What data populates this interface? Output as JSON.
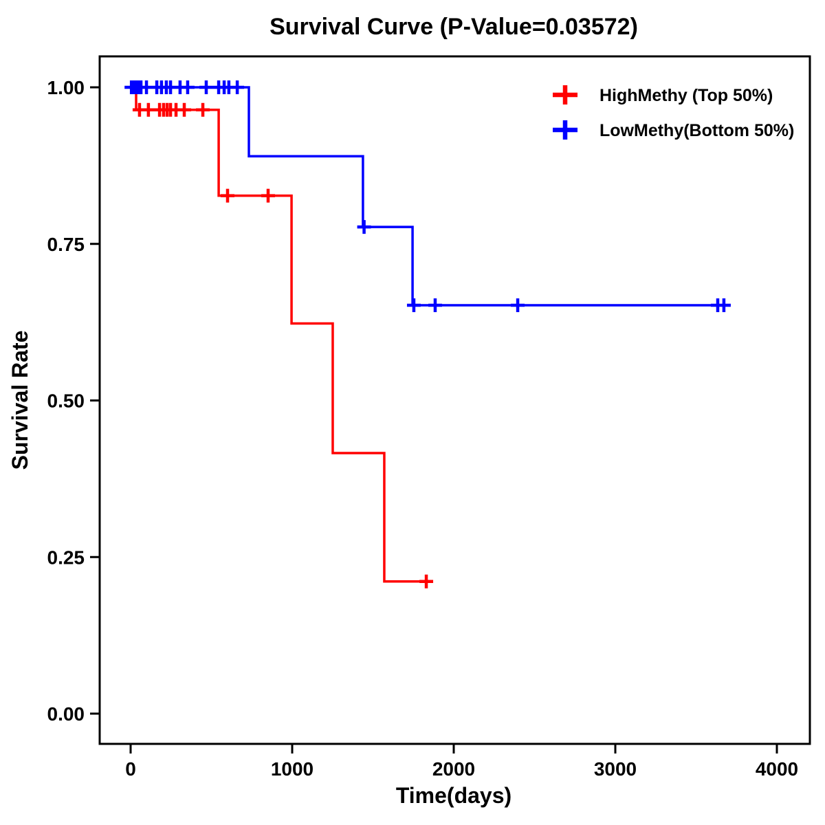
{
  "chart_data": {
    "type": "line",
    "variant": "kaplan-meier-step",
    "title": "Survival Curve (P-Value=0.03572)",
    "xlabel": "Time(days)",
    "ylabel": "Survival Rate",
    "xlim": [
      -190,
      4200
    ],
    "ylim": [
      -0.05,
      1.05
    ],
    "xticks": [
      0,
      1000,
      2000,
      3000,
      4000
    ],
    "yticks": [
      {
        "value": 0.0,
        "label": "0.00"
      },
      {
        "value": 0.25,
        "label": "0.25"
      },
      {
        "value": 0.5,
        "label": "0.50"
      },
      {
        "value": 0.75,
        "label": "0.75"
      },
      {
        "value": 1.0,
        "label": "1.00"
      }
    ],
    "grid": false,
    "legend_position": "top-right",
    "series": [
      {
        "name": "HighMethy (Top 50%)",
        "slug": "highmethy",
        "color": "#FF0000",
        "steps": [
          [
            0,
            1.0
          ],
          [
            34,
            0.964
          ],
          [
            545,
            0.827
          ],
          [
            996,
            0.623
          ],
          [
            1251,
            0.416
          ],
          [
            1570,
            0.211
          ],
          [
            1830,
            0.211
          ]
        ],
        "censored": [
          [
            55,
            0.964
          ],
          [
            110,
            0.964
          ],
          [
            179,
            0.964
          ],
          [
            204,
            0.964
          ],
          [
            226,
            0.964
          ],
          [
            247,
            0.964
          ],
          [
            281,
            0.964
          ],
          [
            332,
            0.964
          ],
          [
            447,
            0.964
          ],
          [
            600,
            0.827
          ],
          [
            851,
            0.827
          ],
          [
            1830,
            0.211
          ]
        ]
      },
      {
        "name": "LowMethy(Bottom 50%)",
        "slug": "lowmethy",
        "color": "#0000FF",
        "steps": [
          [
            0,
            1.0
          ],
          [
            732,
            0.89
          ],
          [
            1438,
            0.777
          ],
          [
            1745,
            0.652
          ],
          [
            3680,
            0.652
          ]
        ],
        "censored": [
          [
            5,
            1.0
          ],
          [
            15,
            1.0
          ],
          [
            25,
            1.0
          ],
          [
            35,
            1.0
          ],
          [
            50,
            1.0
          ],
          [
            64,
            1.0
          ],
          [
            98,
            1.0
          ],
          [
            162,
            1.0
          ],
          [
            191,
            1.0
          ],
          [
            221,
            1.0
          ],
          [
            247,
            1.0
          ],
          [
            306,
            1.0
          ],
          [
            353,
            1.0
          ],
          [
            468,
            1.0
          ],
          [
            545,
            1.0
          ],
          [
            579,
            1.0
          ],
          [
            608,
            1.0
          ],
          [
            660,
            1.0
          ],
          [
            1445,
            0.777
          ],
          [
            1753,
            0.652
          ],
          [
            1885,
            0.652
          ],
          [
            2396,
            0.652
          ],
          [
            3634,
            0.652
          ],
          [
            3672,
            0.652
          ]
        ]
      }
    ]
  }
}
